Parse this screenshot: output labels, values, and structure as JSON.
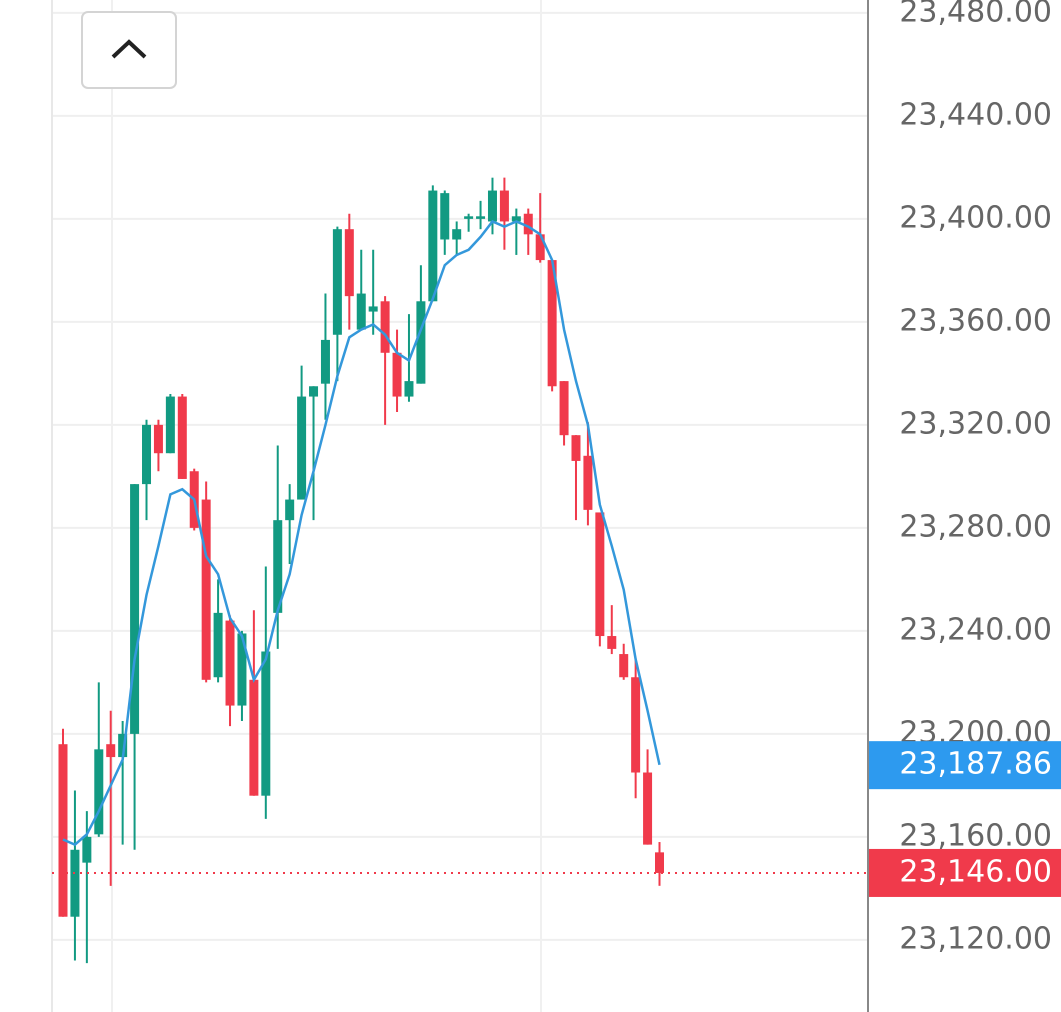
{
  "chart_data": {
    "type": "candlestick",
    "open": [
      23196,
      23129,
      23150,
      23161,
      23196,
      23191,
      23200,
      23297,
      23320,
      23309,
      23331,
      23302,
      23291,
      23222,
      23244,
      23211,
      23221,
      23176,
      23247,
      23283,
      23291,
      23331,
      23336,
      23355,
      23396,
      23357,
      23364,
      23368,
      23348,
      23331,
      23336,
      23368,
      23392,
      23392,
      23400,
      23400,
      23399,
      23411,
      23399,
      23402,
      23394,
      23384,
      23337,
      23316,
      23308,
      23286,
      23238,
      23231,
      23222,
      23185,
      23154
    ],
    "high": [
      23202,
      23178,
      23170,
      23220,
      23209,
      23205,
      23297,
      23322,
      23322,
      23332,
      23332,
      23303,
      23298,
      23260,
      23246,
      23240,
      23248,
      23265,
      23312,
      23297,
      23343,
      23335,
      23371,
      23397,
      23402,
      23388,
      23388,
      23370,
      23357,
      23363,
      23382,
      23413,
      23411,
      23399,
      23402,
      23407,
      23416,
      23416,
      23404,
      23404,
      23410,
      23384,
      23337,
      23316,
      23321,
      23286,
      23250,
      23235,
      23229,
      23194,
      23158
    ],
    "low": [
      23129,
      23112,
      23111,
      23160,
      23141,
      23157,
      23155,
      23283,
      23302,
      23309,
      23299,
      23279,
      23220,
      23220,
      23203,
      23205,
      23176,
      23167,
      23233,
      23266,
      23291,
      23283,
      23322,
      23337,
      23357,
      23357,
      23355,
      23320,
      23325,
      23329,
      23336,
      23368,
      23386,
      23386,
      23395,
      23396,
      23394,
      23388,
      23386,
      23386,
      23383,
      23333,
      23312,
      23283,
      23281,
      23234,
      23231,
      23221,
      23175,
      23157,
      23141
    ],
    "close": [
      23129,
      23155,
      23160,
      23194,
      23191,
      23200,
      23297,
      23320,
      23309,
      23331,
      23299,
      23280,
      23221,
      23247,
      23211,
      23239,
      23176,
      23232,
      23283,
      23291,
      23331,
      23335,
      23353,
      23396,
      23370,
      23371,
      23366,
      23348,
      23331,
      23337,
      23368,
      23411,
      23410,
      23396,
      23401,
      23401,
      23411,
      23399,
      23401,
      23394,
      23384,
      23335,
      23316,
      23306,
      23287,
      23238,
      23233,
      23222,
      23185,
      23157,
      23146
    ],
    "up_color": "#129a82",
    "down_color": "#f03a4b",
    "ma": {
      "color": "#3498db",
      "values": [
        23159,
        23157,
        23161,
        23170,
        23180,
        23190,
        23229,
        23254,
        23273,
        23293,
        23295,
        23291,
        23269,
        23262,
        23245,
        23238,
        23221,
        23229,
        23248,
        23262,
        23285,
        23302,
        23320,
        23339,
        23354,
        23357,
        23359,
        23355,
        23348,
        23345,
        23357,
        23369,
        23382,
        23386,
        23388,
        23393,
        23399,
        23397,
        23399,
        23397,
        23394,
        23384,
        23357,
        23337,
        23320,
        23289,
        23273,
        23256,
        23229,
        23209,
        23188
      ]
    },
    "ma_last": {
      "value": 23187.86,
      "label": "23,187.86",
      "color": "#2d9aef"
    },
    "last_price": {
      "value": 23146.0,
      "label": "23,146.00",
      "color": "#f03a4b"
    },
    "ylim": [
      23092,
      23485
    ],
    "yticks": [
      {
        "value": 23120,
        "label": "23,120.00"
      },
      {
        "value": 23160,
        "label": "23,160.00"
      },
      {
        "value": 23200,
        "label": "23,200.00"
      },
      {
        "value": 23240,
        "label": "23,240.00"
      },
      {
        "value": 23280,
        "label": "23,280.00"
      },
      {
        "value": 23320,
        "label": "23,320.00"
      },
      {
        "value": 23360,
        "label": "23,360.00"
      },
      {
        "value": 23400,
        "label": "23,400.00"
      },
      {
        "value": 23440,
        "label": "23,440.00"
      },
      {
        "value": 23480,
        "label": "23,480.00"
      }
    ],
    "grid": true
  }
}
